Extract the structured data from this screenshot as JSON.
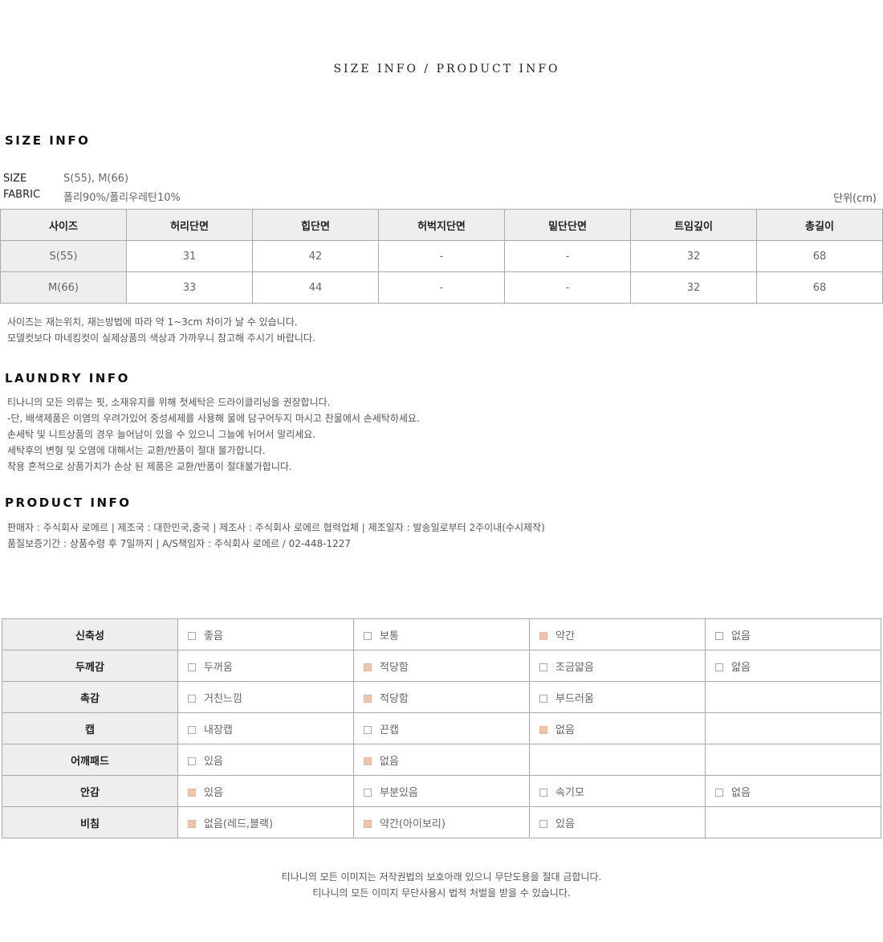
{
  "page_title": "SIZE INFO / PRODUCT INFO",
  "size_info": {
    "heading": "SIZE INFO",
    "size_label": "SIZE",
    "size_value": "S(55), M(66)",
    "fabric_label": "FABRIC",
    "fabric_value": "폴리90%/폴리우레탄10%",
    "unit": "단위(cm)",
    "headers": [
      "사이즈",
      "허리단면",
      "힙단면",
      "허벅지단면",
      "밑단단면",
      "트임깊이",
      "총길이"
    ],
    "rows": [
      [
        "S(55)",
        "31",
        "42",
        "-",
        "-",
        "32",
        "68"
      ],
      [
        "M(66)",
        "33",
        "44",
        "-",
        "-",
        "32",
        "68"
      ]
    ],
    "notes": [
      "사이즈는 재는위치, 재는방법에 따라 약 1~3cm 차이가 날 수 있습니다.",
      "모델컷보다 마네킹컷이 실제상품의 색상과 가까우니 참고해 주시기 바랍니다."
    ]
  },
  "laundry_info": {
    "heading": "LAUNDRY INFO",
    "lines": [
      "티나니의 모든 의류는 핏, 소재유지를 위해 첫세탁은 드라이클리닝을 권장합니다.",
      "-단, 배색제품은 이염의 우려가있어 중성세제를 사용해 물에 담구어두지 마시고 찬물에서 손세탁하세요.",
      "손세탁 및 니트상품의 경우 늘어남이 있을 수 있으니 그늘에 뉘어서 말리세요.",
      "세탁후의 변형 및 오염에 대해서는 교환/반품이 절대 불가합니다.",
      "착용 흔적으로 상품가치가 손상 된 제품은 교환/반품이 절대불가합니다."
    ]
  },
  "product_info": {
    "heading": "PRODUCT INFO",
    "lines": [
      "판매자 : 주식회사 로에르 | 제조국 : 대한민국,중국 | 제조사 : 주식회사 로에르 협력업체 | 제조일자 : 발송일로부터 2주이내(수시제작)",
      "품질보증기간 : 상품수령 후 7일까지 | A/S책임자 : 주식회사 로에르 / 02-448-1227"
    ]
  },
  "attributes": [
    {
      "label": "신축성",
      "options": [
        {
          "text": "좋음",
          "checked": false
        },
        {
          "text": "보통",
          "checked": false
        },
        {
          "text": "약간",
          "checked": true
        },
        {
          "text": "없음",
          "checked": false
        }
      ]
    },
    {
      "label": "두께감",
      "options": [
        {
          "text": "두꺼움",
          "checked": false
        },
        {
          "text": "적당함",
          "checked": true
        },
        {
          "text": "조금얇음",
          "checked": false
        },
        {
          "text": "얇음",
          "checked": false
        }
      ]
    },
    {
      "label": "촉감",
      "options": [
        {
          "text": "거친느낌",
          "checked": false
        },
        {
          "text": "적당함",
          "checked": true
        },
        {
          "text": "부드러움",
          "checked": false
        }
      ]
    },
    {
      "label": "캡",
      "options": [
        {
          "text": "내장캡",
          "checked": false
        },
        {
          "text": "끈캡",
          "checked": false
        },
        {
          "text": "없음",
          "checked": true
        }
      ]
    },
    {
      "label": "어깨패드",
      "options": [
        {
          "text": "있음",
          "checked": false
        },
        {
          "text": "없음",
          "checked": true
        }
      ]
    },
    {
      "label": "안감",
      "options": [
        {
          "text": "있음",
          "checked": true
        },
        {
          "text": "부분있음",
          "checked": false
        },
        {
          "text": "속기모",
          "checked": false
        },
        {
          "text": "없음",
          "checked": false
        }
      ]
    },
    {
      "label": "비침",
      "options": [
        {
          "text": "없음(레드,블랙)",
          "checked": true
        },
        {
          "text": "약간(아이보리)",
          "checked": true
        },
        {
          "text": "있음",
          "checked": false
        }
      ]
    }
  ],
  "check_color": "#efc4ad",
  "footer": [
    "티나니의 모든 이미지는 저작권법의 보호아래 있으니 무단도용을 절대 금합니다.",
    "티나니의 모든 이미지 무단사용시 법적 처벌을 받을 수 있습니다."
  ]
}
